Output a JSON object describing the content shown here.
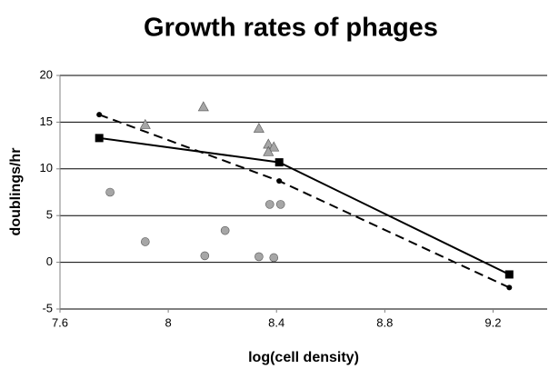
{
  "chart_data": {
    "type": "scatter",
    "title": "Growth rates of phages",
    "x_label": "log(cell density)",
    "y_label": "doublings/hr",
    "xlim": [
      7.6,
      9.4
    ],
    "xticks": [
      7.6,
      8,
      8.4,
      8.8,
      9.2
    ],
    "ylim": [
      -5,
      20
    ],
    "yticks": [
      -5,
      0,
      5,
      10,
      15,
      20
    ],
    "grid": true,
    "series": [
      {
        "marker": "triangle",
        "color": "#a6a6a6",
        "line": "none",
        "x": [
          7.915,
          8.13,
          8.335,
          8.37,
          8.39,
          8.37
        ],
        "values": [
          14.7,
          16.6,
          14.3,
          12.6,
          12.3,
          11.8
        ]
      },
      {
        "marker": "circle",
        "color": "#a6a6a6",
        "line": "none",
        "x": [
          7.785,
          7.915,
          8.135,
          8.21,
          8.335,
          8.375,
          8.39,
          8.415
        ],
        "values": [
          7.5,
          2.2,
          0.7,
          3.4,
          0.6,
          6.2,
          0.5,
          6.2
        ]
      },
      {
        "marker": "square",
        "color": "#000000",
        "line": "solid",
        "x": [
          7.745,
          8.41,
          9.26
        ],
        "values": [
          13.3,
          10.7,
          -1.3
        ]
      },
      {
        "marker": "dot",
        "color": "#000000",
        "line": "dashed",
        "x": [
          7.745,
          8.41,
          9.26
        ],
        "values": [
          15.8,
          8.7,
          -2.7
        ]
      }
    ]
  }
}
